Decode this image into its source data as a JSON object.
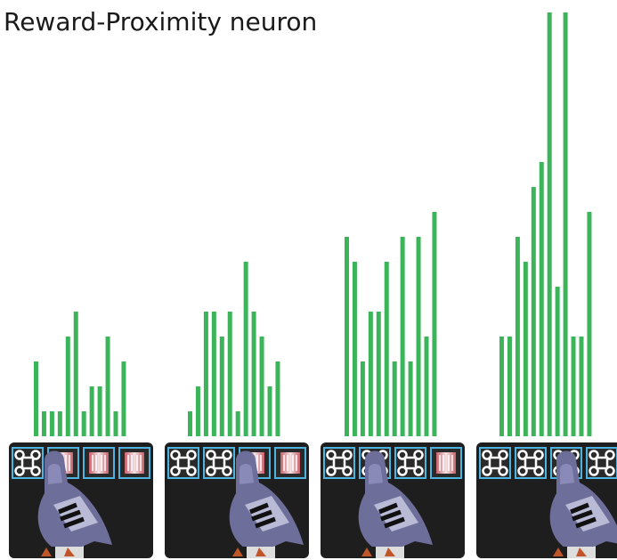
{
  "title": "Reward-Proximity neuron",
  "chart_data": [
    {
      "type": "bar",
      "values": [
        3,
        1,
        1,
        1,
        4,
        5,
        1,
        2,
        2,
        4,
        1,
        3
      ],
      "color": "#3cb55a",
      "ylim": [
        0,
        17.5
      ]
    },
    {
      "type": "bar",
      "values": [
        1,
        2,
        5,
        5,
        4,
        5,
        1,
        7,
        5,
        4,
        2,
        3
      ],
      "color": "#3cb55a",
      "ylim": [
        0,
        17.5
      ]
    },
    {
      "type": "bar",
      "values": [
        8,
        7,
        3,
        5,
        5,
        7,
        3,
        8,
        3,
        8,
        4,
        9
      ],
      "color": "#3cb55a",
      "ylim": [
        0,
        17.5
      ]
    },
    {
      "type": "bar",
      "values": [
        4,
        4,
        8,
        7,
        10,
        11,
        17,
        6,
        17,
        4,
        4,
        9
      ],
      "color": "#3cb55a",
      "ylim": [
        0,
        17.5
      ]
    }
  ]
}
